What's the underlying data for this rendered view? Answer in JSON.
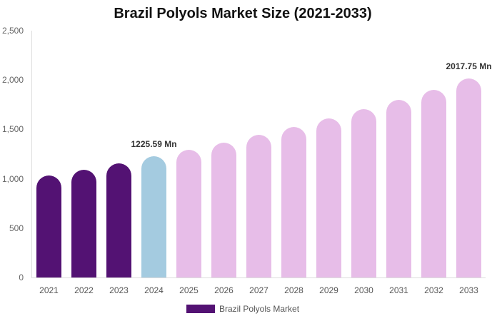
{
  "chart_data": {
    "type": "bar",
    "title": "Brazil Polyols Market Size (2021-2033)",
    "xlabel": "",
    "ylabel": "",
    "ylim": [
      0,
      2500
    ],
    "yticks": [
      "0",
      "500",
      "1,000",
      "1,500",
      "2,000",
      "2,500"
    ],
    "grid": false,
    "legend_position": "bottom",
    "categories": [
      "2021",
      "2022",
      "2023",
      "2024",
      "2025",
      "2026",
      "2027",
      "2028",
      "2029",
      "2030",
      "2031",
      "2032",
      "2033"
    ],
    "series": [
      {
        "name": "Brazil Polyols Market",
        "values": [
          1033,
          1091,
          1156,
          1225.59,
          1293,
          1366,
          1445,
          1525,
          1611,
          1705,
          1799,
          1900,
          2017.75
        ],
        "colors": [
          "#531273",
          "#531273",
          "#531273",
          "#a4cbe0",
          "#e7bde8",
          "#e7bde8",
          "#e7bde8",
          "#e7bde8",
          "#e7bde8",
          "#e7bde8",
          "#e7bde8",
          "#e7bde8",
          "#e7bde8"
        ]
      }
    ],
    "annotations": [
      {
        "category": "2024",
        "text": "1225.59 Mn"
      },
      {
        "category": "2033",
        "text": "2017.75 Mn"
      }
    ]
  },
  "legend": {
    "label": "Brazil Polyols Market",
    "color": "#531273"
  }
}
